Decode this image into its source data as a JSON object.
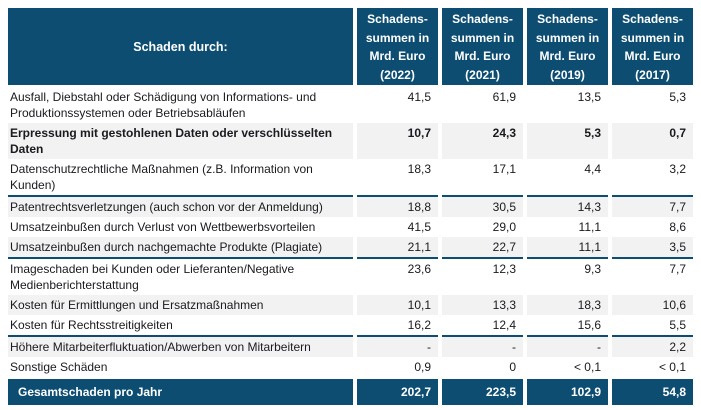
{
  "chart_data": {
    "type": "table",
    "corner_label": "Schaden durch:",
    "col_headers": [
      "Schadens-\nsummen in\nMrd. Euro\n(2022)",
      "Schadens-\nsummen in\nMrd. Euro\n(2021)",
      "Schadens-\nsummen in\nMrd. Euro\n(2019)",
      "Schadens-\nsummen in\nMrd. Euro\n(2017)"
    ],
    "years": [
      "2022",
      "2021",
      "2019",
      "2017"
    ],
    "unit": "Mrd. Euro",
    "rows": [
      {
        "label": "Ausfall, Diebstahl oder Schädigung von Informations- und Produktionssystemen oder Betriebsabläufen",
        "values": [
          "41,5",
          "61,9",
          "13,5",
          "5,3"
        ],
        "bold": false,
        "shaded": false,
        "divider_top": false
      },
      {
        "label": "Erpressung mit gestohlenen Daten oder verschlüsselten Daten",
        "values": [
          "10,7",
          "24,3",
          "5,3",
          "0,7"
        ],
        "bold": true,
        "shaded": true,
        "divider_top": false
      },
      {
        "label": "Datenschutzrechtliche Maßnahmen (z.B. Information von Kunden)",
        "values": [
          "18,3",
          "17,1",
          "4,4",
          "3,2"
        ],
        "bold": false,
        "shaded": false,
        "divider_top": false
      },
      {
        "label": "Patentrechtsverletzungen (auch schon vor der Anmeldung)",
        "values": [
          "18,8",
          "30,5",
          "14,3",
          "7,7"
        ],
        "bold": false,
        "shaded": true,
        "divider_top": true
      },
      {
        "label": "Umsatzeinbußen durch Verlust von Wettbewerbsvorteilen",
        "values": [
          "41,5",
          "29,0",
          "11,1",
          "8,6"
        ],
        "bold": false,
        "shaded": false,
        "divider_top": false
      },
      {
        "label": "Umsatzeinbußen durch nachgemachte Produkte (Plagiate)",
        "values": [
          "21,1",
          "22,7",
          "11,1",
          "3,5"
        ],
        "bold": false,
        "shaded": true,
        "divider_top": false
      },
      {
        "label": "Imageschaden bei Kunden oder Lieferanten/Negative Medienberichterstattung",
        "values": [
          "23,6",
          "12,3",
          "9,3",
          "7,7"
        ],
        "bold": false,
        "shaded": false,
        "divider_top": true
      },
      {
        "label": "Kosten für Ermittlungen und Ersatzmaßnahmen",
        "values": [
          "10,1",
          "13,3",
          "18,3",
          "10,6"
        ],
        "bold": false,
        "shaded": true,
        "divider_top": false
      },
      {
        "label": "Kosten für Rechtsstreitigkeiten",
        "values": [
          "16,2",
          "12,4",
          "15,6",
          "5,5"
        ],
        "bold": false,
        "shaded": false,
        "divider_top": false
      },
      {
        "label": "Höhere Mitarbeiterfluktuation/Abwerben von Mitarbeitern",
        "values": [
          "-",
          "-",
          "-",
          "2,2"
        ],
        "bold": false,
        "shaded": true,
        "divider_top": true
      },
      {
        "label": "Sonstige Schäden",
        "values": [
          "0,9",
          "0",
          "< 0,1",
          "< 0,1"
        ],
        "bold": false,
        "shaded": false,
        "divider_top": false
      }
    ],
    "footer": {
      "label": "Gesamtschaden pro Jahr",
      "values": [
        "202,7",
        "223,5",
        "102,9",
        "54,8"
      ]
    }
  },
  "colors": {
    "header_bg": "#0d4d72",
    "row_shade_bg": "#f2f2f2",
    "body_text": "#1a1a1f",
    "header_text": "#ffffff",
    "line_color": "#0d4d72"
  }
}
